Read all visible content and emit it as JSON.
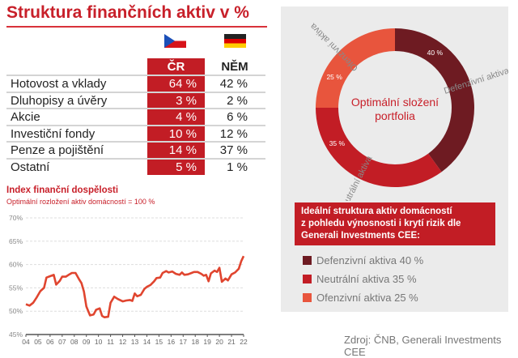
{
  "title": "Struktura finančních aktiv v %",
  "table": {
    "headers": {
      "cz": "ČR",
      "de": "NĚM"
    },
    "flags": {
      "cz": "czech-flag",
      "de": "german-flag"
    },
    "rows": [
      {
        "label": "Hotovost a vklady",
        "cz": "64 %",
        "de": "42 %"
      },
      {
        "label": "Dluhopisy a úvěry",
        "cz": "3 %",
        "de": "2 %"
      },
      {
        "label": "Akcie",
        "cz": "4 %",
        "de": "6 %"
      },
      {
        "label": "Investiční fondy",
        "cz": "10 %",
        "de": "12 %"
      },
      {
        "label": "Penze a pojištění",
        "cz": "14 %",
        "de": "37 %"
      },
      {
        "label": "Ostatní",
        "cz": "5 %",
        "de": "1 %"
      }
    ],
    "accent": "#c21d25"
  },
  "chart_data": [
    {
      "type": "line",
      "title": "Index finanční dospělosti",
      "subtitle": "Optimální rozložení aktiv domácností = 100 %",
      "xlim": [
        2004,
        2022
      ],
      "ylim": [
        45,
        70
      ],
      "x_tick_labels": [
        "04",
        "05",
        "06",
        "07",
        "08",
        "09",
        "10",
        "11",
        "12",
        "13",
        "14",
        "15",
        "16",
        "17",
        "18",
        "19",
        "20",
        "21",
        "22"
      ],
      "y_tick_labels": [
        "70%",
        "65%",
        "60%",
        "55%",
        "50%",
        "45%"
      ],
      "grid": true,
      "color": "#e0452f",
      "series": [
        {
          "x": [
            2004.0,
            2004.3,
            2004.6,
            2004.9,
            2005.2,
            2005.5,
            2005.7,
            2006.0,
            2006.3,
            2006.5,
            2006.8,
            2007.0,
            2007.3,
            2007.6,
            2007.8,
            2008.1,
            2008.4,
            2008.6,
            2008.8,
            2009.0,
            2009.3,
            2009.6,
            2009.8,
            2010.1,
            2010.3,
            2010.5,
            2010.8,
            2011.0,
            2011.3,
            2011.6,
            2012.0,
            2012.3,
            2012.6,
            2012.8,
            2013.0,
            2013.2,
            2013.5,
            2013.8,
            2014.0,
            2014.3,
            2014.6,
            2014.8,
            2015.1,
            2015.3,
            2015.6,
            2015.8,
            2016.1,
            2016.4,
            2016.7,
            2016.9,
            2017.1,
            2017.4,
            2017.7,
            2017.9,
            2018.2,
            2018.5,
            2018.7,
            2018.9,
            2019.1,
            2019.3,
            2019.6,
            2019.8,
            2020.0,
            2020.2,
            2020.5,
            2020.7,
            2021.0,
            2021.3,
            2021.6,
            2021.8,
            2022.0
          ],
          "y": [
            51.5,
            51.2,
            51.8,
            53.0,
            54.3,
            55.0,
            57.2,
            57.5,
            57.8,
            55.7,
            56.5,
            57.4,
            57.4,
            57.9,
            58.2,
            58.2,
            56.8,
            56.0,
            54.2,
            51.0,
            49.1,
            49.3,
            50.3,
            50.6,
            49.0,
            48.7,
            48.8,
            51.8,
            53.1,
            52.6,
            52.1,
            52.3,
            52.4,
            52.2,
            53.8,
            53.2,
            53.5,
            54.8,
            55.2,
            55.6,
            56.4,
            57.1,
            57.2,
            58.2,
            58.6,
            58.3,
            58.5,
            58.0,
            57.8,
            58.3,
            57.8,
            57.9,
            58.2,
            58.4,
            58.4,
            58.0,
            57.6,
            57.8,
            56.4,
            58.1,
            58.7,
            58.4,
            59.3,
            56.3,
            57.0,
            56.6,
            57.9,
            58.3,
            59.1,
            60.7,
            61.8
          ]
        }
      ]
    },
    {
      "type": "pie",
      "title": "Optimální složení portfolia",
      "slices": [
        {
          "label": "Defenzivní aktiva",
          "value": 40,
          "value_label": "40 %",
          "color": "#6e1b22"
        },
        {
          "label": "Neutrální aktiva",
          "value": 35,
          "value_label": "35 %",
          "color": "#c21d25"
        },
        {
          "label": "Ofenzivní aktiva",
          "value": 25,
          "value_label": "25 %",
          "color": "#e8553d"
        }
      ]
    }
  ],
  "info_box": [
    "Ideální struktura aktiv domácností",
    "z pohledu výnosnosti i  krytí rizik dle",
    "Generali Investments CEE:"
  ],
  "legend": [
    {
      "label": "Defenzivní aktiva 40 %",
      "color": "#6e1b22"
    },
    {
      "label": "Neutrální aktiva 35 %",
      "color": "#c21d25"
    },
    {
      "label": "Ofenzivní aktiva 25 %",
      "color": "#e8553d"
    }
  ],
  "source": "Zdroj: ČNB, Generali Investments CEE"
}
